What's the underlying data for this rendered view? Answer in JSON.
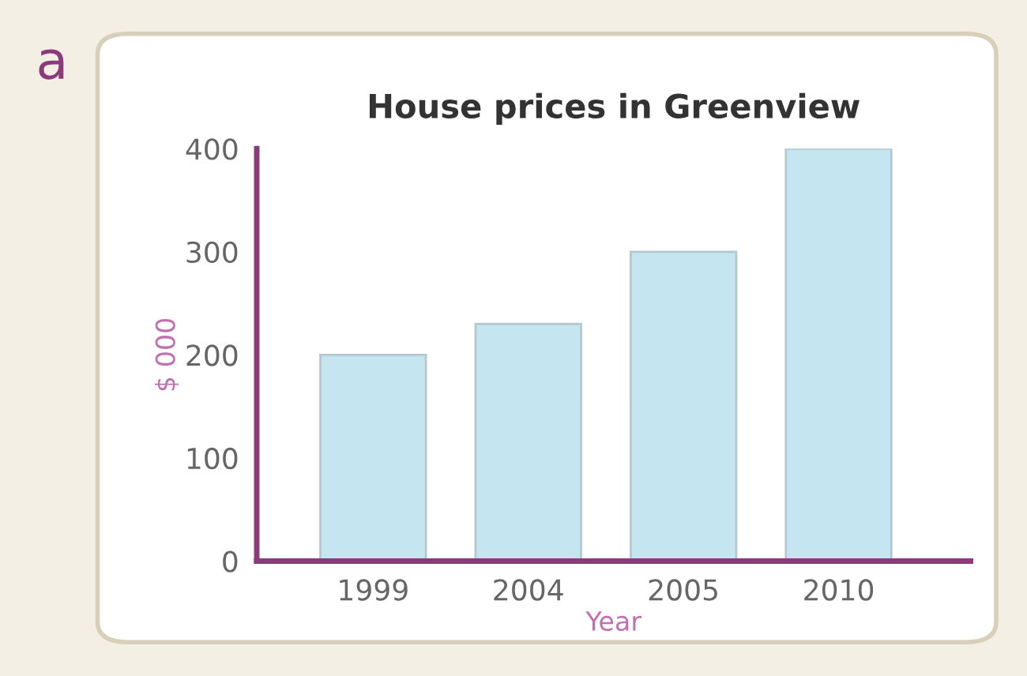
{
  "chart_data": {
    "type": "bar",
    "title": "House prices in Greenview",
    "xlabel": "Year",
    "ylabel": "$ 000",
    "categories": [
      "1999",
      "2004",
      "2005",
      "2010"
    ],
    "values": [
      200,
      230,
      300,
      400
    ],
    "color": "#c5e5f0",
    "ylim": [
      0,
      400
    ],
    "yticks": [
      0,
      100,
      200,
      300,
      400
    ],
    "grid": false,
    "annotations": [
      "a"
    ]
  }
}
